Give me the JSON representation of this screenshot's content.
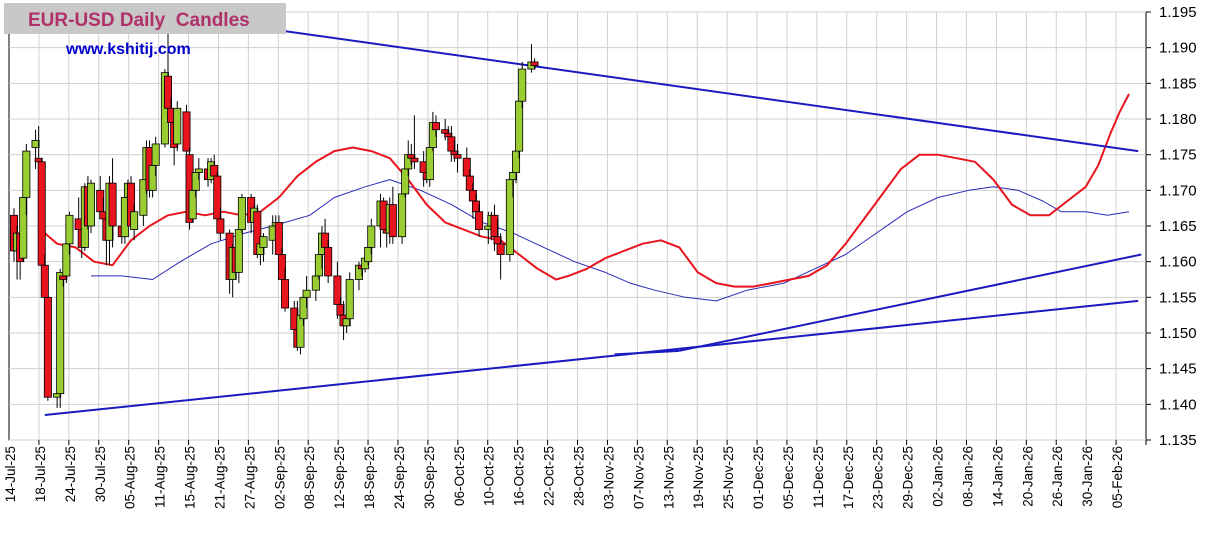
{
  "title": "EUR-USD Daily  Candles",
  "subtitle": "www.kshitij.com",
  "chart_data": {
    "type": "candlestick",
    "title": "EUR-USD Daily  Candles",
    "ylim": [
      1.135,
      1.195
    ],
    "y_ticks": [
      "1.135",
      "1.140",
      "1.145",
      "1.150",
      "1.155",
      "1.160",
      "1.165",
      "1.170",
      "1.175",
      "1.180",
      "1.185",
      "1.190",
      "1.195"
    ],
    "x_ticks": [
      "14-Jul-25",
      "18-Jul-25",
      "24-Jul-25",
      "30-Jul-25",
      "05-Aug-25",
      "11-Aug-25",
      "15-Aug-25",
      "21-Aug-25",
      "27-Aug-25",
      "02-Sep-25",
      "08-Sep-25",
      "12-Sep-25",
      "18-Sep-25",
      "24-Sep-25",
      "30-Sep-25",
      "06-Oct-25",
      "10-Oct-25",
      "16-Oct-25",
      "22-Oct-25",
      "28-Oct-25",
      "03-Nov-25",
      "07-Nov-25",
      "13-Nov-25",
      "19-Nov-25",
      "25-Nov-25",
      "01-Dec-25",
      "05-Dec-25",
      "11-Dec-25",
      "17-Dec-25",
      "23-Dec-25",
      "29-Dec-25",
      "02-Jan-26",
      "08-Jan-26",
      "14-Jan-26",
      "20-Jan-26",
      "26-Jan-26",
      "30-Jan-26",
      "05-Feb-26"
    ],
    "grid": true,
    "y_axis_side": "right",
    "colors": {
      "up": "#9acd32",
      "down": "#e8141e",
      "short_ma": "#e8141e",
      "long_ma": "#2a2ab8",
      "trendline": "#1a1ac0",
      "grid": "#d0d0d0"
    },
    "candles": [
      [
        1.1665,
        1.1675,
        1.16,
        1.1615
      ],
      [
        1.1615,
        1.165,
        1.1575,
        1.164
      ],
      [
        1.164,
        1.166,
        1.1575,
        1.16
      ],
      [
        1.1605,
        1.1695,
        1.16,
        1.169
      ],
      [
        1.169,
        1.1765,
        1.1665,
        1.1755
      ],
      [
        1.176,
        1.1785,
        1.173,
        1.177
      ],
      [
        1.1745,
        1.179,
        1.169,
        1.174
      ],
      [
        1.174,
        1.1745,
        1.1595,
        1.1595
      ],
      [
        1.1595,
        1.161,
        1.1545,
        1.155
      ],
      [
        1.155,
        1.155,
        1.1405,
        1.141
      ],
      [
        1.141,
        1.142,
        1.1395,
        1.1415
      ],
      [
        1.1415,
        1.159,
        1.1395,
        1.1585
      ],
      [
        1.158,
        1.1595,
        1.1565,
        1.1575
      ],
      [
        1.158,
        1.164,
        1.157,
        1.1625
      ],
      [
        1.1625,
        1.167,
        1.161,
        1.1665
      ],
      [
        1.166,
        1.169,
        1.163,
        1.1645
      ],
      [
        1.1645,
        1.166,
        1.1605,
        1.162
      ],
      [
        1.162,
        1.171,
        1.1615,
        1.1705
      ],
      [
        1.1705,
        1.172,
        1.1645,
        1.165
      ],
      [
        1.165,
        1.1715,
        1.164,
        1.171
      ],
      [
        1.17,
        1.172,
        1.1665,
        1.167
      ],
      [
        1.167,
        1.169,
        1.165,
        1.166
      ],
      [
        1.166,
        1.167,
        1.1595,
        1.163
      ],
      [
        1.163,
        1.172,
        1.1595,
        1.171
      ],
      [
        1.171,
        1.1745,
        1.162,
        1.165
      ],
      [
        1.165,
        1.167,
        1.1625,
        1.1635
      ],
      [
        1.1635,
        1.171,
        1.1625,
        1.169
      ],
      [
        1.169,
        1.1715,
        1.167,
        1.171
      ],
      [
        1.171,
        1.172,
        1.1645,
        1.165
      ],
      [
        1.1645,
        1.168,
        1.163,
        1.167
      ],
      [
        1.1665,
        1.172,
        1.165,
        1.1715
      ],
      [
        1.1715,
        1.177,
        1.1695,
        1.176
      ],
      [
        1.176,
        1.177,
        1.169,
        1.17
      ],
      [
        1.17,
        1.174,
        1.169,
        1.1735
      ],
      [
        1.1735,
        1.1775,
        1.172,
        1.1765
      ],
      [
        1.1765,
        1.187,
        1.176,
        1.1865
      ],
      [
        1.186,
        1.1925,
        1.18,
        1.1815
      ],
      [
        1.1815,
        1.183,
        1.178,
        1.1795
      ],
      [
        1.1795,
        1.1815,
        1.1735,
        1.176
      ],
      [
        1.1765,
        1.1825,
        1.1755,
        1.1815
      ],
      [
        1.181,
        1.182,
        1.1745,
        1.1755
      ],
      [
        1.175,
        1.176,
        1.1645,
        1.1655
      ],
      [
        1.166,
        1.1705,
        1.1655,
        1.17
      ],
      [
        1.17,
        1.173,
        1.169,
        1.1725
      ],
      [
        1.1725,
        1.1745,
        1.1715,
        1.173
      ],
      [
        1.173,
        1.1745,
        1.1705,
        1.1715
      ],
      [
        1.1715,
        1.1745,
        1.171,
        1.174
      ],
      [
        1.1735,
        1.175,
        1.1715,
        1.172
      ],
      [
        1.172,
        1.1725,
        1.165,
        1.166
      ],
      [
        1.166,
        1.1675,
        1.163,
        1.164
      ],
      [
        1.164,
        1.1645,
        1.1555,
        1.1575
      ],
      [
        1.1575,
        1.1625,
        1.155,
        1.162
      ],
      [
        1.162,
        1.1635,
        1.1575,
        1.1585
      ],
      [
        1.1585,
        1.165,
        1.157,
        1.1645
      ],
      [
        1.1645,
        1.1695,
        1.164,
        1.169
      ],
      [
        1.169,
        1.1695,
        1.164,
        1.1655
      ],
      [
        1.1655,
        1.168,
        1.165,
        1.1675
      ],
      [
        1.167,
        1.168,
        1.1605,
        1.161
      ],
      [
        1.161,
        1.163,
        1.1595,
        1.1625
      ],
      [
        1.162,
        1.164,
        1.16,
        1.1635
      ],
      [
        1.163,
        1.1665,
        1.161,
        1.165
      ],
      [
        1.165,
        1.1665,
        1.164,
        1.1655
      ],
      [
        1.1655,
        1.1665,
        1.16,
        1.161
      ],
      [
        1.161,
        1.162,
        1.1555,
        1.1575
      ],
      [
        1.1575,
        1.159,
        1.153,
        1.1535
      ],
      [
        1.1535,
        1.1545,
        1.1495,
        1.1505
      ],
      [
        1.1505,
        1.1545,
        1.1475,
        1.148
      ],
      [
        1.148,
        1.1535,
        1.147,
        1.1525
      ],
      [
        1.152,
        1.156,
        1.151,
        1.155
      ],
      [
        1.155,
        1.158,
        1.1535,
        1.156
      ],
      [
        1.156,
        1.159,
        1.1545,
        1.158
      ],
      [
        1.158,
        1.162,
        1.1575,
        1.161
      ],
      [
        1.161,
        1.165,
        1.159,
        1.164
      ],
      [
        1.164,
        1.166,
        1.161,
        1.162
      ],
      [
        1.162,
        1.163,
        1.157,
        1.158
      ],
      [
        1.158,
        1.16,
        1.152,
        1.154
      ],
      [
        1.154,
        1.155,
        1.151,
        1.1525
      ],
      [
        1.1525,
        1.1545,
        1.149,
        1.151
      ],
      [
        1.151,
        1.153,
        1.15,
        1.152
      ],
      [
        1.152,
        1.1585,
        1.151,
        1.1575
      ],
      [
        1.1575,
        1.16,
        1.156,
        1.1595
      ],
      [
        1.1595,
        1.16,
        1.158,
        1.159
      ],
      [
        1.159,
        1.1615,
        1.1585,
        1.1605
      ],
      [
        1.16,
        1.163,
        1.1595,
        1.162
      ],
      [
        1.162,
        1.166,
        1.161,
        1.165
      ],
      [
        1.165,
        1.1695,
        1.162,
        1.1685
      ],
      [
        1.1685,
        1.169,
        1.164,
        1.1645
      ],
      [
        1.1645,
        1.166,
        1.162,
        1.164
      ],
      [
        1.164,
        1.169,
        1.1625,
        1.168
      ],
      [
        1.168,
        1.1705,
        1.1625,
        1.1635
      ],
      [
        1.1635,
        1.17,
        1.1625,
        1.1695
      ],
      [
        1.1695,
        1.174,
        1.169,
        1.173
      ],
      [
        1.173,
        1.177,
        1.172,
        1.175
      ],
      [
        1.175,
        1.1765,
        1.1735,
        1.1745
      ],
      [
        1.1745,
        1.1805,
        1.173,
        1.174
      ],
      [
        1.174,
        1.1755,
        1.1705,
        1.1725
      ],
      [
        1.1725,
        1.1745,
        1.171,
        1.1715
      ],
      [
        1.1715,
        1.1765,
        1.1705,
        1.176
      ],
      [
        1.176,
        1.181,
        1.1755,
        1.1795
      ],
      [
        1.1795,
        1.1805,
        1.1775,
        1.1785
      ],
      [
        1.1785,
        1.18,
        1.177,
        1.178
      ],
      [
        1.178,
        1.179,
        1.176,
        1.1775
      ],
      [
        1.1775,
        1.179,
        1.174,
        1.1755
      ],
      [
        1.1755,
        1.177,
        1.174,
        1.175
      ],
      [
        1.175,
        1.1765,
        1.1725,
        1.1745
      ],
      [
        1.1745,
        1.176,
        1.17,
        1.172
      ],
      [
        1.172,
        1.173,
        1.169,
        1.17
      ],
      [
        1.17,
        1.171,
        1.166,
        1.1685
      ],
      [
        1.1685,
        1.1695,
        1.1655,
        1.167
      ],
      [
        1.167,
        1.168,
        1.1635,
        1.1645
      ],
      [
        1.1645,
        1.167,
        1.1625,
        1.165
      ],
      [
        1.165,
        1.167,
        1.163,
        1.1665
      ],
      [
        1.1665,
        1.168,
        1.1615,
        1.1635
      ],
      [
        1.1635,
        1.166,
        1.161,
        1.1625
      ],
      [
        1.1625,
        1.164,
        1.1575,
        1.161
      ],
      [
        1.161,
        1.172,
        1.16,
        1.1715
      ],
      [
        1.1715,
        1.174,
        1.169,
        1.1725
      ],
      [
        1.1725,
        1.1775,
        1.171,
        1.1755
      ],
      [
        1.1755,
        1.183,
        1.1745,
        1.1825
      ],
      [
        1.1825,
        1.188,
        1.1815,
        1.187
      ],
      [
        1.187,
        1.1905,
        1.1865,
        1.188
      ],
      [
        1.188,
        1.1885,
        1.187,
        1.1875
      ]
    ],
    "short_ma": [
      [
        10,
        1.164
      ],
      [
        14,
        1.1625
      ],
      [
        20,
        1.162
      ],
      [
        26,
        1.16
      ],
      [
        32,
        1.1595
      ],
      [
        38,
        1.163
      ],
      [
        44,
        1.165
      ],
      [
        50,
        1.1665
      ],
      [
        56,
        1.167
      ],
      [
        62,
        1.1665
      ],
      [
        68,
        1.167
      ],
      [
        74,
        1.1665
      ],
      [
        80,
        1.167
      ],
      [
        86,
        1.169
      ],
      [
        92,
        1.172
      ],
      [
        98,
        1.174
      ],
      [
        104,
        1.1755
      ],
      [
        110,
        1.176
      ],
      [
        116,
        1.1755
      ],
      [
        122,
        1.1745
      ],
      [
        128,
        1.1715
      ],
      [
        134,
        1.168
      ],
      [
        140,
        1.1655
      ],
      [
        146,
        1.1645
      ],
      [
        152,
        1.1635
      ],
      [
        158,
        1.163
      ],
      [
        164,
        1.161
      ],
      [
        170,
        1.159
      ],
      [
        176,
        1.1575
      ],
      [
        180,
        1.158
      ],
      [
        186,
        1.159
      ],
      [
        192,
        1.1605
      ],
      [
        198,
        1.1615
      ],
      [
        204,
        1.1625
      ],
      [
        210,
        1.163
      ],
      [
        216,
        1.162
      ],
      [
        222,
        1.1585
      ],
      [
        228,
        1.157
      ],
      [
        234,
        1.1565
      ],
      [
        240,
        1.1565
      ],
      [
        246,
        1.157
      ],
      [
        252,
        1.1575
      ],
      [
        258,
        1.158
      ],
      [
        264,
        1.1595
      ],
      [
        270,
        1.1625
      ],
      [
        276,
        1.166
      ],
      [
        282,
        1.1695
      ],
      [
        288,
        1.173
      ],
      [
        294,
        1.175
      ],
      [
        300,
        1.175
      ],
      [
        306,
        1.1745
      ],
      [
        312,
        1.174
      ],
      [
        318,
        1.1715
      ],
      [
        324,
        1.168
      ],
      [
        330,
        1.1665
      ],
      [
        336,
        1.1665
      ],
      [
        342,
        1.1685
      ],
      [
        348,
        1.1705
      ],
      [
        352,
        1.1735
      ],
      [
        356,
        1.178
      ],
      [
        359,
        1.181
      ],
      [
        362,
        1.1835
      ]
    ],
    "long_ma": [
      [
        25,
        1.158
      ],
      [
        35,
        1.158
      ],
      [
        45,
        1.1575
      ],
      [
        54,
        1.16
      ],
      [
        64,
        1.1625
      ],
      [
        75,
        1.164
      ],
      [
        84,
        1.165
      ],
      [
        96,
        1.1665
      ],
      [
        104,
        1.169
      ],
      [
        114,
        1.1705
      ],
      [
        122,
        1.1715
      ],
      [
        132,
        1.17
      ],
      [
        142,
        1.168
      ],
      [
        152,
        1.1655
      ],
      [
        162,
        1.164
      ],
      [
        172,
        1.162
      ],
      [
        182,
        1.16
      ],
      [
        192,
        1.1585
      ],
      [
        200,
        1.157
      ],
      [
        208,
        1.156
      ],
      [
        218,
        1.155
      ],
      [
        228,
        1.1545
      ],
      [
        238,
        1.156
      ],
      [
        250,
        1.157
      ],
      [
        260,
        1.159
      ],
      [
        270,
        1.161
      ],
      [
        280,
        1.164
      ],
      [
        290,
        1.167
      ],
      [
        300,
        1.169
      ],
      [
        310,
        1.17
      ],
      [
        318,
        1.1705
      ],
      [
        326,
        1.17
      ],
      [
        334,
        1.1685
      ],
      [
        340,
        1.167
      ],
      [
        348,
        1.167
      ],
      [
        355,
        1.1665
      ],
      [
        362,
        1.167
      ]
    ],
    "trendlines": [
      {
        "from": [
          85,
          1.1925
        ],
        "to": [
          365,
          1.1755
        ]
      },
      {
        "from": [
          10,
          1.1385
        ],
        "to": [
          365,
          1.1545
        ]
      },
      {
        "from": [
          216,
          1.1475
        ],
        "to": [
          366,
          1.161
        ]
      },
      {
        "from": [
          195,
          1.147
        ],
        "to": [
          216,
          1.1475
        ]
      }
    ]
  }
}
